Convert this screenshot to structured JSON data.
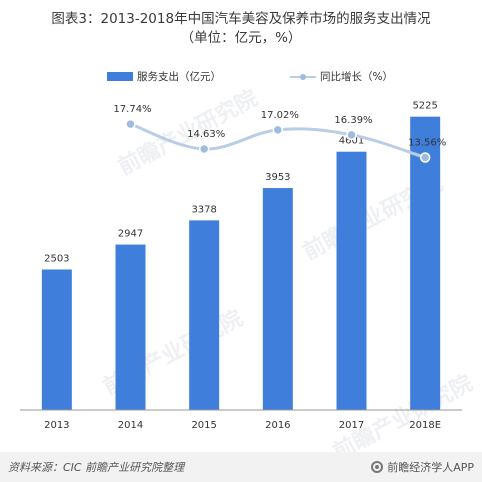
{
  "title": {
    "line1": "图表3：2013-2018年中国汽车美容及保养市场的服务支出情况",
    "line2": "（单位：亿元，%）"
  },
  "watermark": {
    "text": "前瞻产业研究院"
  },
  "footer": {
    "source": "资料来源：CIC  前瞻产业研究院整理",
    "brand": "前瞻经济学人APP"
  },
  "colors": {
    "bar": "#3f7fdb",
    "line": "#b9cde6",
    "marker": "#9fbbe0",
    "axis": "#999999"
  },
  "chart_data": {
    "type": "bar",
    "categories": [
      "2013",
      "2014",
      "2015",
      "2016",
      "2017",
      "2018E"
    ],
    "series": [
      {
        "name": "服务支出（亿元）",
        "type": "bar",
        "axis": "left",
        "values": [
          2503,
          2947,
          3378,
          3953,
          4601,
          5225
        ],
        "labels": [
          "2503",
          "2947",
          "3378",
          "3953",
          "4601",
          "5225"
        ]
      },
      {
        "name": "同比增长（%）",
        "type": "line",
        "axis": "right",
        "x": [
          "2014",
          "2015",
          "2016",
          "2017",
          "2018E"
        ],
        "values": [
          17.74,
          14.63,
          17.02,
          16.39,
          13.56
        ],
        "labels": [
          "17.74%",
          "14.63%",
          "17.02%",
          "16.39%",
          "13.56%"
        ]
      }
    ],
    "ylim": [
      0,
      5700
    ],
    "y2lim": [
      -18,
      22
    ],
    "legend_position": "top-center",
    "grid": false
  }
}
